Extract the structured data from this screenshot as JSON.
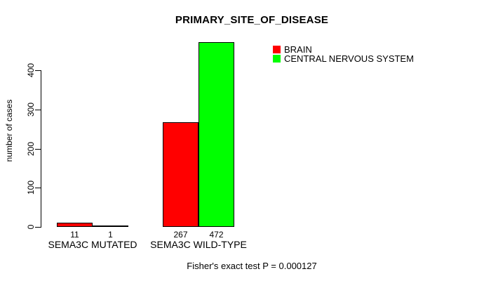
{
  "chart_data": {
    "type": "bar",
    "title": "PRIMARY_SITE_OF_DISEASE",
    "xlabel": "",
    "ylabel": "number of cases",
    "categories": [
      "SEMA3C MUTATED",
      "SEMA3C WILD-TYPE"
    ],
    "series": [
      {
        "name": "BRAIN",
        "color": "#ff0000",
        "values": [
          11,
          267
        ]
      },
      {
        "name": "CENTRAL NERVOUS SYSTEM",
        "color": "#00ff00",
        "values": [
          1,
          472
        ]
      }
    ],
    "bar_value_labels": [
      [
        "11",
        "267"
      ],
      [
        "1",
        "472"
      ]
    ],
    "ylim": [
      0,
      400
    ],
    "yticks": [
      0,
      100,
      200,
      300,
      400
    ],
    "grid": false,
    "legend_position": "top-right",
    "annotation": "Fisher's exact test P = 0.000127",
    "bar_border_color": "#000000",
    "text_color": "#000000",
    "background_color": "#ffffff"
  }
}
